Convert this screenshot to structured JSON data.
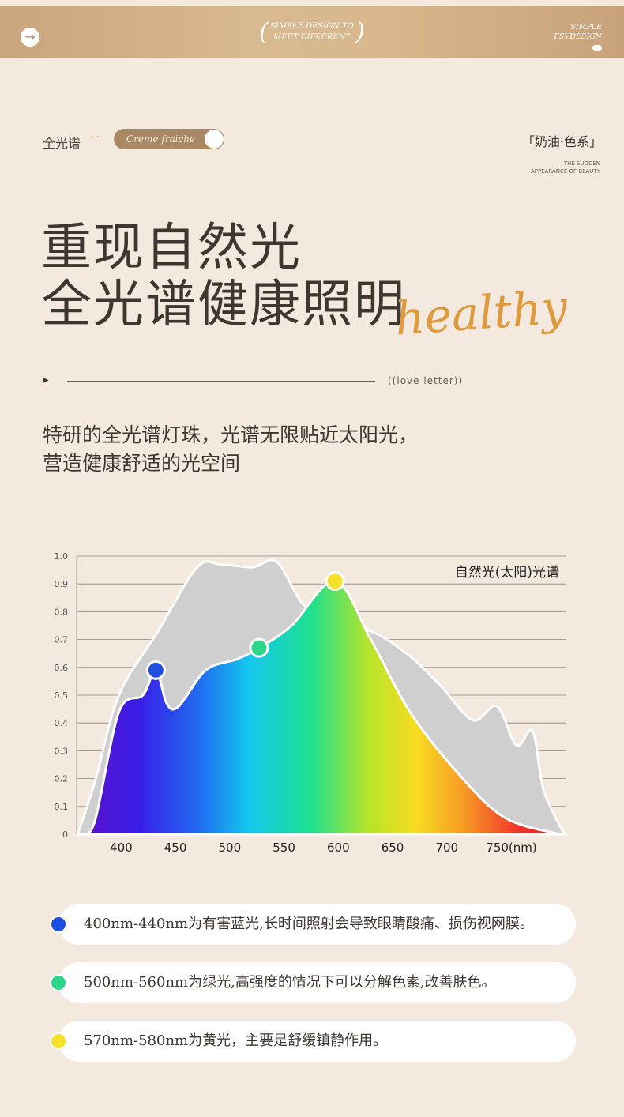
{
  "banner": {
    "icon": "arrow-right-icon",
    "center_line1": "SIMPLE DESIGN TO",
    "center_line2": "MEET DIFFERENT",
    "right_line1": "SIMPLE",
    "right_line2": "FSVDESIGN"
  },
  "header": {
    "tag": "全光谱",
    "pill_label": "Creme fraiche",
    "series_label": "「奶油·色系」",
    "tagline_1": "THE SUDDEN",
    "tagline_2": "APPEARANCE OF BEAUTY"
  },
  "hero": {
    "title_line1": "重现自然光",
    "title_line2": "全光谱健康照明",
    "script_word": "healthy",
    "love_label": "((love letter))",
    "desc_line1": "特研的全光谱灯珠，光谱无限贴近太阳光，",
    "desc_line2": "营造健康舒适的光空间"
  },
  "chart_data": {
    "type": "area",
    "title": "",
    "xlabel": "",
    "ylabel": "",
    "x_ticks": [
      "400",
      "450",
      "500",
      "550",
      "600",
      "650",
      "700",
      "750(nm)"
    ],
    "y_ticks": [
      "0",
      "0.1",
      "0.2",
      "0.3",
      "0.4",
      "0.5",
      "0.6",
      "0.7",
      "0.8",
      "0.9",
      "1.0"
    ],
    "xlim": [
      359,
      810
    ],
    "ylim": [
      0,
      1.0
    ],
    "grid": "horizontal",
    "legend_label": "自然光(太阳)光谱",
    "series": [
      {
        "name": "自然光(太阳)光谱",
        "color": "#cfcfcf",
        "x": [
          360,
          376,
          398,
          434,
          470,
          492,
          521,
          543,
          565,
          587,
          630,
          666,
          695,
          724,
          746,
          764,
          779,
          789,
          808
        ],
        "y": [
          0,
          0.19,
          0.5,
          0.73,
          0.96,
          0.97,
          0.96,
          0.98,
          0.84,
          0.76,
          0.73,
          0.64,
          0.53,
          0.41,
          0.46,
          0.32,
          0.37,
          0.16,
          0
        ]
      },
      {
        "x": [
          364,
          376,
          398,
          420,
          432,
          442,
          453,
          478,
          507,
          527,
          557,
          597,
          630,
          666,
          710,
          753,
          804
        ],
        "y": [
          0,
          0.05,
          0.44,
          0.5,
          0.59,
          0.47,
          0.46,
          0.59,
          0.63,
          0.67,
          0.75,
          0.91,
          0.7,
          0.44,
          0.22,
          0.06,
          0
        ]
      }
    ],
    "markers": [
      {
        "x": 432,
        "y": 0.59,
        "color": "#1e4fe0"
      },
      {
        "x": 527,
        "y": 0.67,
        "color": "#2bd68a"
      },
      {
        "x": 597,
        "y": 0.91,
        "color": "#f5e02a"
      }
    ]
  },
  "notes": [
    {
      "color": "#1e4fe0",
      "text": "400nm-440nm为有害蓝光,长时间照射会导致眼睛酸痛、损伤视网膜。"
    },
    {
      "color": "#2bd68a",
      "text": "500nm-560nm为绿光,高强度的情况下可以分解色素,改善肤色。"
    },
    {
      "color": "#f5e02a",
      "text": "570nm-580nm为黄光，主要是舒缓镇静作用。"
    }
  ]
}
